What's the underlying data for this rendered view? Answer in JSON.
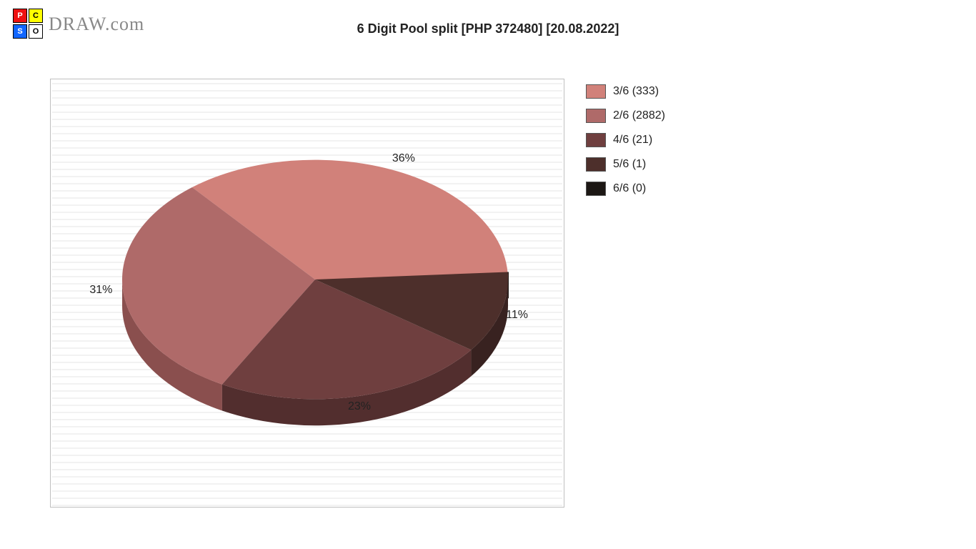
{
  "site": {
    "name": "DRAW.com",
    "logo_quadrants": [
      {
        "char": "P",
        "bg": "#e11",
        "fg": "#fff"
      },
      {
        "char": "C",
        "bg": "#ff0",
        "fg": "#000"
      },
      {
        "char": "S",
        "bg": "#16f",
        "fg": "#fff"
      },
      {
        "char": "O",
        "bg": "#fff",
        "fg": "#000"
      }
    ]
  },
  "chart": {
    "title": "6 Digit Pool split [PHP 372480] [20.08.2022]",
    "type": "pie",
    "background_color": "#ffffff",
    "gridline_color": "#e6e6e6",
    "border_color": "#bfbfbf",
    "start_angle_deg": 0,
    "outer_label_fontsize": 16,
    "title_fontsize": 18,
    "title_fontweight": "bold",
    "side_ratio": 0.22,
    "legend": {
      "position": "right",
      "fontsize": 16,
      "swatch_border_color": "#555555"
    },
    "slices": [
      {
        "label": "3/6 (333)",
        "pct": 36,
        "color": "#d1817a",
        "side_color": "#a65f59",
        "pct_label": "36%"
      },
      {
        "label": "2/6 (2882)",
        "pct": 31,
        "color": "#af6a69",
        "side_color": "#8a4f4e",
        "pct_label": "31%"
      },
      {
        "label": "4/6 (21)",
        "pct": 23,
        "color": "#6f3f3f",
        "side_color": "#522e2e",
        "pct_label": "23%"
      },
      {
        "label": "5/6 (1)",
        "pct": 11,
        "color": "#4d2f2b",
        "side_color": "#382220",
        "pct_label": "11%"
      },
      {
        "label": "6/6 (0)",
        "pct": 0,
        "color": "#1c1714",
        "side_color": "#110d0b",
        "pct_label": null
      }
    ]
  }
}
